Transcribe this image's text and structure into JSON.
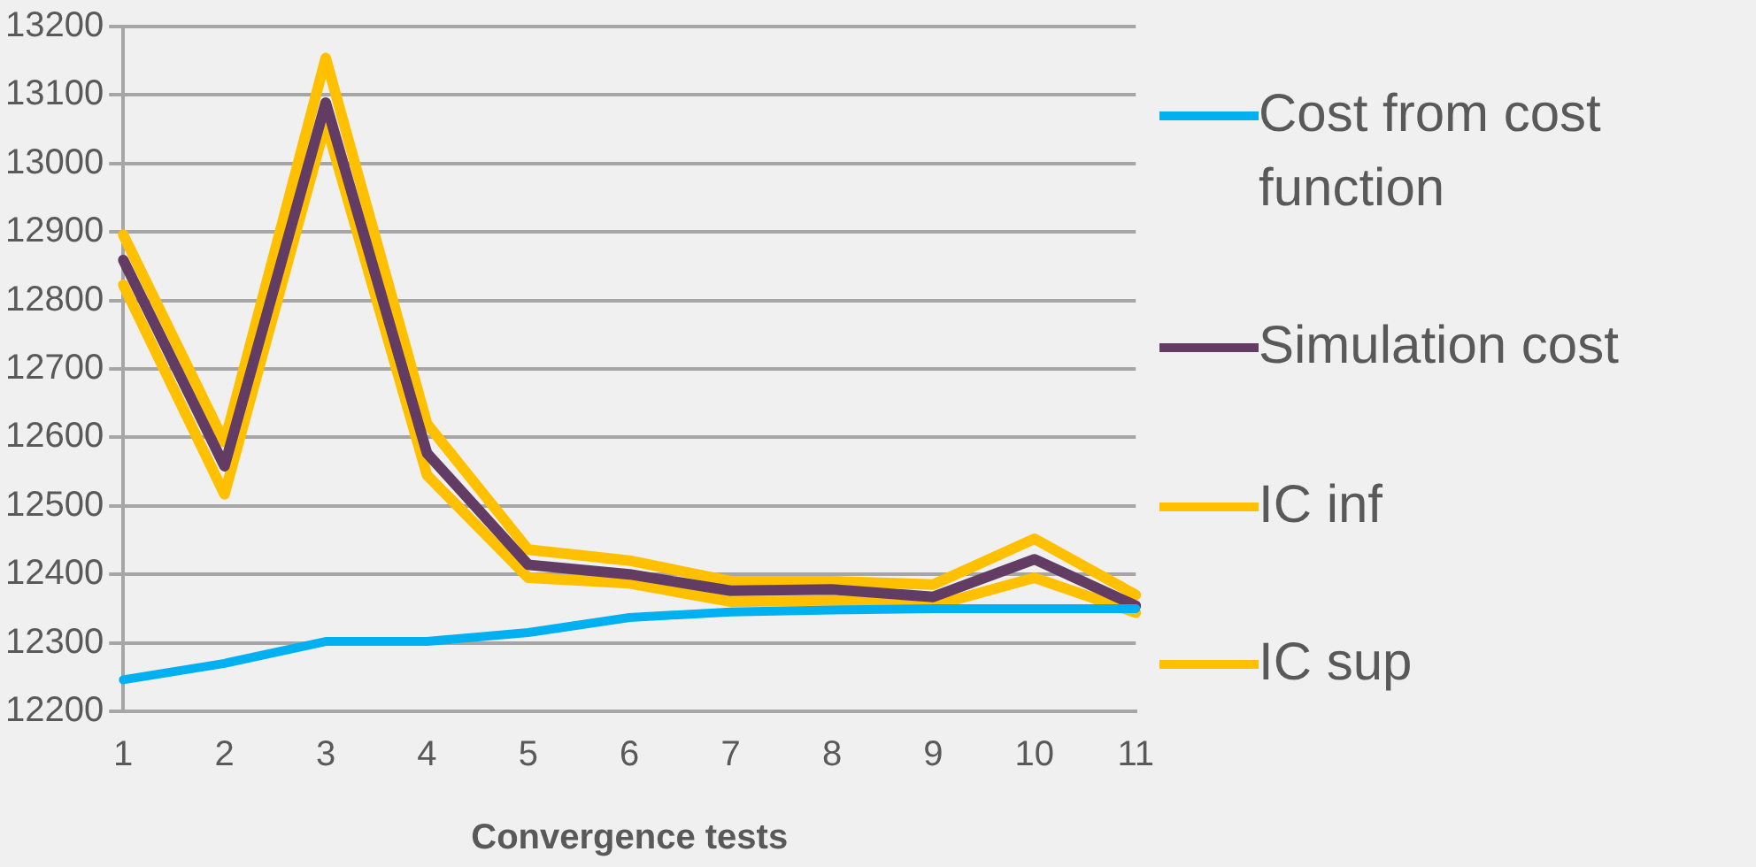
{
  "chart_data": {
    "type": "line",
    "xlabel": "Convergence tests",
    "categories": [
      "1",
      "2",
      "3",
      "4",
      "5",
      "6",
      "7",
      "8",
      "9",
      "10",
      "11"
    ],
    "ylim": [
      12200,
      13200
    ],
    "yticks": [
      12200,
      12300,
      12400,
      12500,
      12600,
      12700,
      12800,
      12900,
      13000,
      13100,
      13200
    ],
    "grid": "y",
    "legend": "right",
    "marker": "none",
    "line_style": "solid",
    "series": [
      {
        "name": "Cost from cost function",
        "color": "#00b0f0",
        "values": [
          12246,
          12270,
          12302,
          12302,
          12315,
          12337,
          12345,
          12348,
          12350,
          12350,
          12350
        ]
      },
      {
        "name": "Simulation cost",
        "color": "#633c64",
        "values": [
          12859,
          12558,
          13089,
          12577,
          12414,
          12400,
          12376,
          12378,
          12367,
          12422,
          12354
        ]
      },
      {
        "name": "IC inf",
        "color": "#ffc000",
        "values": [
          12823,
          12517,
          13059,
          12545,
          12395,
          12387,
          12360,
          12362,
          12354,
          12395,
          12344
        ]
      },
      {
        "name": "IC sup",
        "color": "#ffc000",
        "values": [
          12896,
          12593,
          13154,
          12620,
          12436,
          12420,
          12390,
          12390,
          12385,
          12452,
          12370
        ]
      }
    ]
  }
}
